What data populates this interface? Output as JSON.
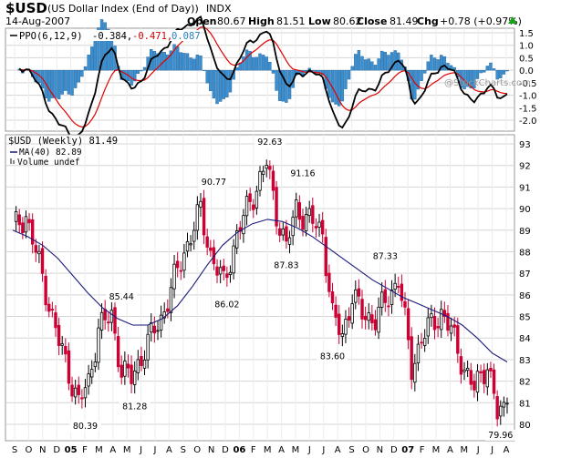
{
  "header": {
    "symbol": "$USD",
    "name": "(US Dollar Index (End of Day))",
    "exchange": "INDX",
    "date": "14-Aug-2007",
    "open_label": "Open",
    "open": "80.67",
    "high_label": "High",
    "high": "81.51",
    "low_label": "Low",
    "low": "80.62",
    "close_label": "Close",
    "close": "81.49",
    "chg_label": "Chg",
    "chg": "+0.78 (+0.97%)",
    "up_arrow_icon": "up-arrow",
    "watermark": "@StockCharts.com"
  },
  "colors": {
    "up": "#000000",
    "down": "#cc0033",
    "ma": "#1a1a7a",
    "ppo_line": "#000000",
    "ppo_signal": "#e00000",
    "ppo_hist": "#3a8fd0",
    "grid": "#d4d4d4"
  },
  "ppo_panel": {
    "label_prefix": "PPO(6,12,9)",
    "ppo_value": "-0.384,",
    "signal_value": "-0.471,",
    "hist_value": "0.087",
    "y_ticks": [
      "1.5",
      "1.0",
      "0.5",
      "0.0",
      "-0.5",
      "-1.0",
      "-1.5",
      "-2.0"
    ]
  },
  "price_panel": {
    "title": "$USD (Weekly) 81.49",
    "ma_label": "MA(40) 82.89",
    "volume_label": "Volume undef",
    "y_ticks": [
      "93",
      "92",
      "91",
      "90",
      "89",
      "88",
      "87",
      "86",
      "85",
      "84",
      "83",
      "82",
      "81",
      "80"
    ],
    "annotations": [
      "80.39",
      "85.44",
      "81.28",
      "90.77",
      "86.02",
      "92.63",
      "87.83",
      "91.16",
      "83.60",
      "87.33",
      "79.96"
    ]
  },
  "x_axis": {
    "labels": [
      "S",
      "O",
      "N",
      "D",
      "05",
      "F",
      "M",
      "A",
      "M",
      "J",
      "J",
      "A",
      "S",
      "O",
      "N",
      "D",
      "06",
      "F",
      "M",
      "A",
      "M",
      "J",
      "J",
      "A",
      "S",
      "O",
      "N",
      "D",
      "07",
      "F",
      "M",
      "A",
      "M",
      "J",
      "J",
      "A"
    ]
  },
  "chart_data": {
    "type": "candlestick",
    "title": "$USD (Weekly) 81.49",
    "period": "Sep 2004 - Aug 2007",
    "ylim": [
      79.7,
      93.2
    ],
    "moving_average": {
      "name": "MA(40)",
      "values": [
        89.0,
        88.7,
        88.3,
        87.7,
        86.9,
        86.1,
        85.4,
        84.9,
        84.6,
        84.6,
        84.9,
        85.5,
        86.4,
        87.4,
        88.3,
        88.9,
        89.3,
        89.5,
        89.4,
        89.1,
        88.7,
        88.2,
        87.7,
        87.2,
        86.7,
        86.3,
        85.9,
        85.6,
        85.3,
        85.0,
        84.6,
        84.0,
        83.3,
        82.89
      ]
    },
    "ohlc_keypoints": [
      {
        "label": "start",
        "close": 89.0
      },
      {
        "label": "low",
        "value": 80.39
      },
      {
        "label": "high",
        "value": 85.44
      },
      {
        "label": "low",
        "value": 81.28
      },
      {
        "label": "high",
        "value": 90.77
      },
      {
        "label": "low",
        "value": 86.02
      },
      {
        "label": "high",
        "value": 92.63
      },
      {
        "label": "low",
        "value": 87.83
      },
      {
        "label": "high",
        "value": 91.16
      },
      {
        "label": "low",
        "value": 83.6
      },
      {
        "label": "high",
        "value": 87.33
      },
      {
        "label": "low",
        "value": 79.96
      },
      {
        "label": "last",
        "close": 81.49
      }
    ],
    "ppo": {
      "name": "PPO(6,12,9)",
      "ppo_last": -0.384,
      "signal_last": -0.471,
      "histogram_last": 0.087,
      "ylim": [
        -2.0,
        1.6
      ]
    }
  }
}
